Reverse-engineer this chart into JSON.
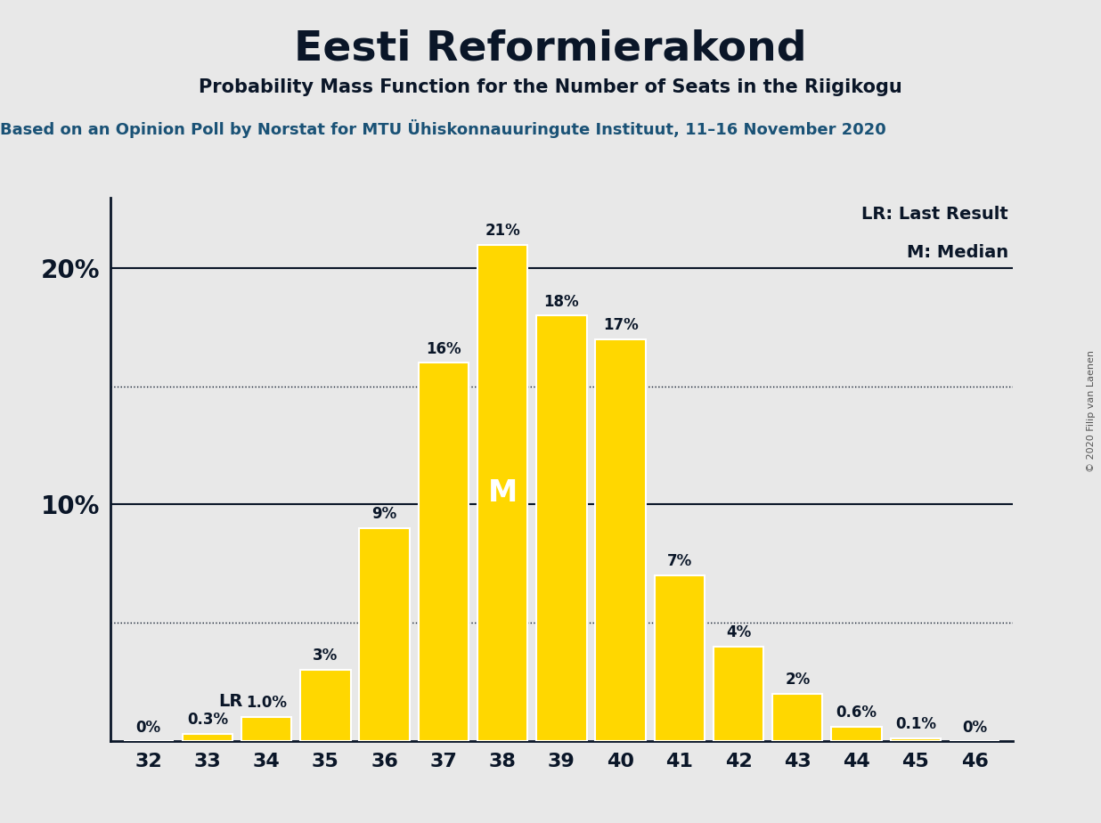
{
  "title": "Eesti Reformierakond",
  "subtitle": "Probability Mass Function for the Number of Seats in the Riigikogu",
  "source_line": "Based on an Opinion Poll by Norstat for MTU Ühiskonnauuringute Instituut, 11–16 November 2020",
  "copyright": "© 2020 Filip van Laenen",
  "categories": [
    32,
    33,
    34,
    35,
    36,
    37,
    38,
    39,
    40,
    41,
    42,
    43,
    44,
    45,
    46
  ],
  "values": [
    0.0,
    0.3,
    1.0,
    3.0,
    9.0,
    16.0,
    21.0,
    18.0,
    17.0,
    7.0,
    4.0,
    2.0,
    0.6,
    0.1,
    0.0
  ],
  "bar_color": "#FFD700",
  "background_color": "#E8E8E8",
  "bar_edge_color": "#FFFFFF",
  "text_color": "#0a1628",
  "source_color": "#1a5276",
  "label_texts": [
    "0%",
    "0.3%",
    "1.0%",
    "3%",
    "9%",
    "16%",
    "21%",
    "18%",
    "17%",
    "7%",
    "4%",
    "2%",
    "0.6%",
    "0.1%",
    "0%"
  ],
  "median_seat": 38,
  "lr_seat": 34,
  "ylim": [
    0,
    23
  ],
  "legend_lr": "LR: Last Result",
  "legend_m": "M: Median"
}
